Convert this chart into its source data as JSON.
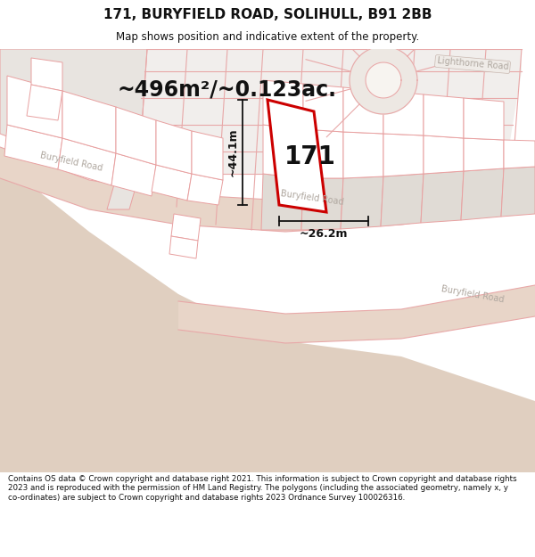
{
  "title": "171, BURYFIELD ROAD, SOLIHULL, B91 2BB",
  "subtitle": "Map shows position and indicative extent of the property.",
  "area_text": "~496m²/~0.123ac.",
  "height_label": "~44.1m",
  "width_label": "~26.2m",
  "property_number": "171",
  "footer": "Contains OS data © Crown copyright and database right 2021. This information is subject to Crown copyright and database rights 2023 and is reproduced with the permission of HM Land Registry. The polygons (including the associated geometry, namely x, y co-ordinates) are subject to Crown copyright and database rights 2023 Ordnance Survey 100026316.",
  "bg_color": "#ffffff",
  "map_bg": "#f7f4f0",
  "road_fill": "#e8d5c8",
  "road_stroke": "#e8a8a8",
  "parcel_fill": "#e8e4e0",
  "parcel_stroke": "#e8a0a0",
  "white_fill": "#ffffff",
  "plot_color": "#cc0000",
  "dim_color": "#111111",
  "text_color": "#111111",
  "road_label_color": "#b0a8a0",
  "lighthorne_label": "Lighthorne Road",
  "buryfield_label1": "Buryfield Road",
  "buryfield_label2": "Buryfield Road",
  "buryfield_label3": "Buryfield Road"
}
